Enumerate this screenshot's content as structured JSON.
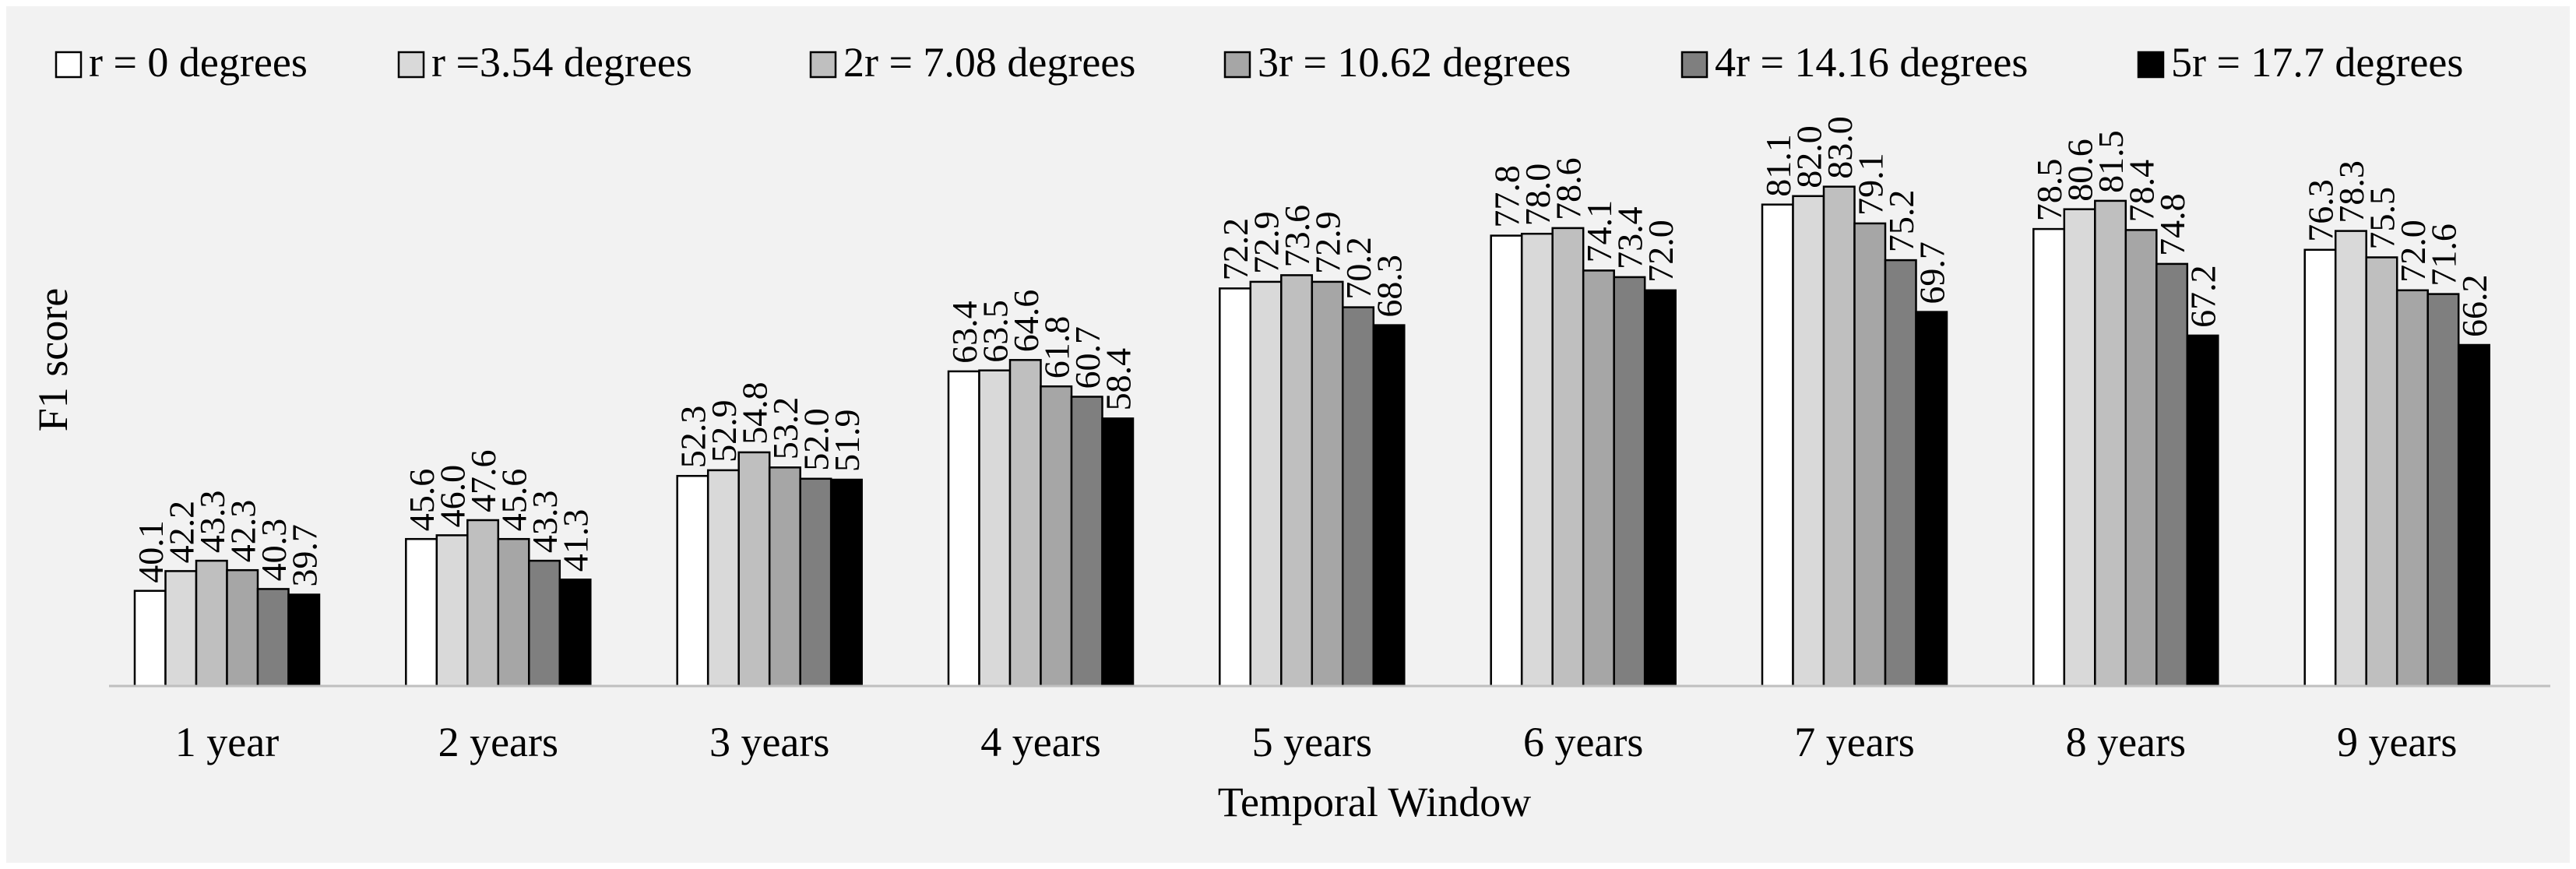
{
  "chart_data": {
    "type": "bar",
    "title": "",
    "xlabel": "Temporal Window",
    "ylabel": "F1 score",
    "ylim": [
      30,
      90
    ],
    "grid": false,
    "legend_position": "top",
    "categories": [
      "1 year",
      "2 years",
      "3 years",
      "4 years",
      "5 years",
      "6 years",
      "7 years",
      "8 years",
      "9 years"
    ],
    "series": [
      {
        "name": "r = 0 degrees",
        "color": "#ffffff",
        "values": [
          40.1,
          45.6,
          52.3,
          63.4,
          72.2,
          77.8,
          81.1,
          78.5,
          76.3
        ],
        "labels": [
          "40.1",
          "45.6",
          "52.3",
          "63.4",
          "72.2",
          "77.8",
          "81.1",
          "78.5",
          "76.3"
        ]
      },
      {
        "name": "r =3.54 degrees",
        "color": "#d9d9d9",
        "values": [
          42.2,
          46.0,
          52.9,
          63.5,
          72.9,
          78.0,
          82.0,
          80.6,
          78.3
        ],
        "labels": [
          "42.2",
          "46.0",
          "52.9",
          "63.5",
          "72.9",
          "78.0",
          "82.0",
          "80.6",
          "78.3"
        ]
      },
      {
        "name": "2r = 7.08 degrees",
        "color": "#bfbfbf",
        "values": [
          43.3,
          47.6,
          54.8,
          64.6,
          73.6,
          78.6,
          83.0,
          81.5,
          75.5
        ],
        "labels": [
          "43.3",
          "47.6",
          "54.8",
          "64.6",
          "73.6",
          "78.6",
          "83.0",
          "81.5",
          "75.5"
        ]
      },
      {
        "name": "3r = 10.62 degrees",
        "color": "#a6a6a6",
        "values": [
          42.3,
          45.6,
          53.2,
          61.8,
          72.9,
          74.1,
          79.1,
          78.4,
          72.0
        ],
        "labels": [
          "42.3",
          "45.6",
          "53.2",
          "61.8",
          "72.9",
          "74.1",
          "79.1",
          "78.4",
          "72.0"
        ]
      },
      {
        "name": "4r = 14.16 degrees",
        "color": "#7f7f7f",
        "values": [
          40.3,
          43.3,
          52.0,
          60.7,
          70.2,
          73.4,
          75.2,
          74.8,
          71.6
        ],
        "labels": [
          "40.3",
          "43.3",
          "52.0",
          "60.7",
          "70.2",
          "73.4",
          "75.2",
          "74.8",
          "71.6"
        ]
      },
      {
        "name": "5r = 17.7 degrees",
        "color": "#000000",
        "values": [
          39.7,
          41.3,
          51.9,
          58.4,
          68.3,
          72.0,
          69.7,
          67.2,
          66.2
        ],
        "labels": [
          "39.7",
          "41.3",
          "51.9",
          "58.4",
          "68.3",
          "72.0",
          "69.7",
          "67.2",
          "66.2"
        ]
      }
    ]
  }
}
